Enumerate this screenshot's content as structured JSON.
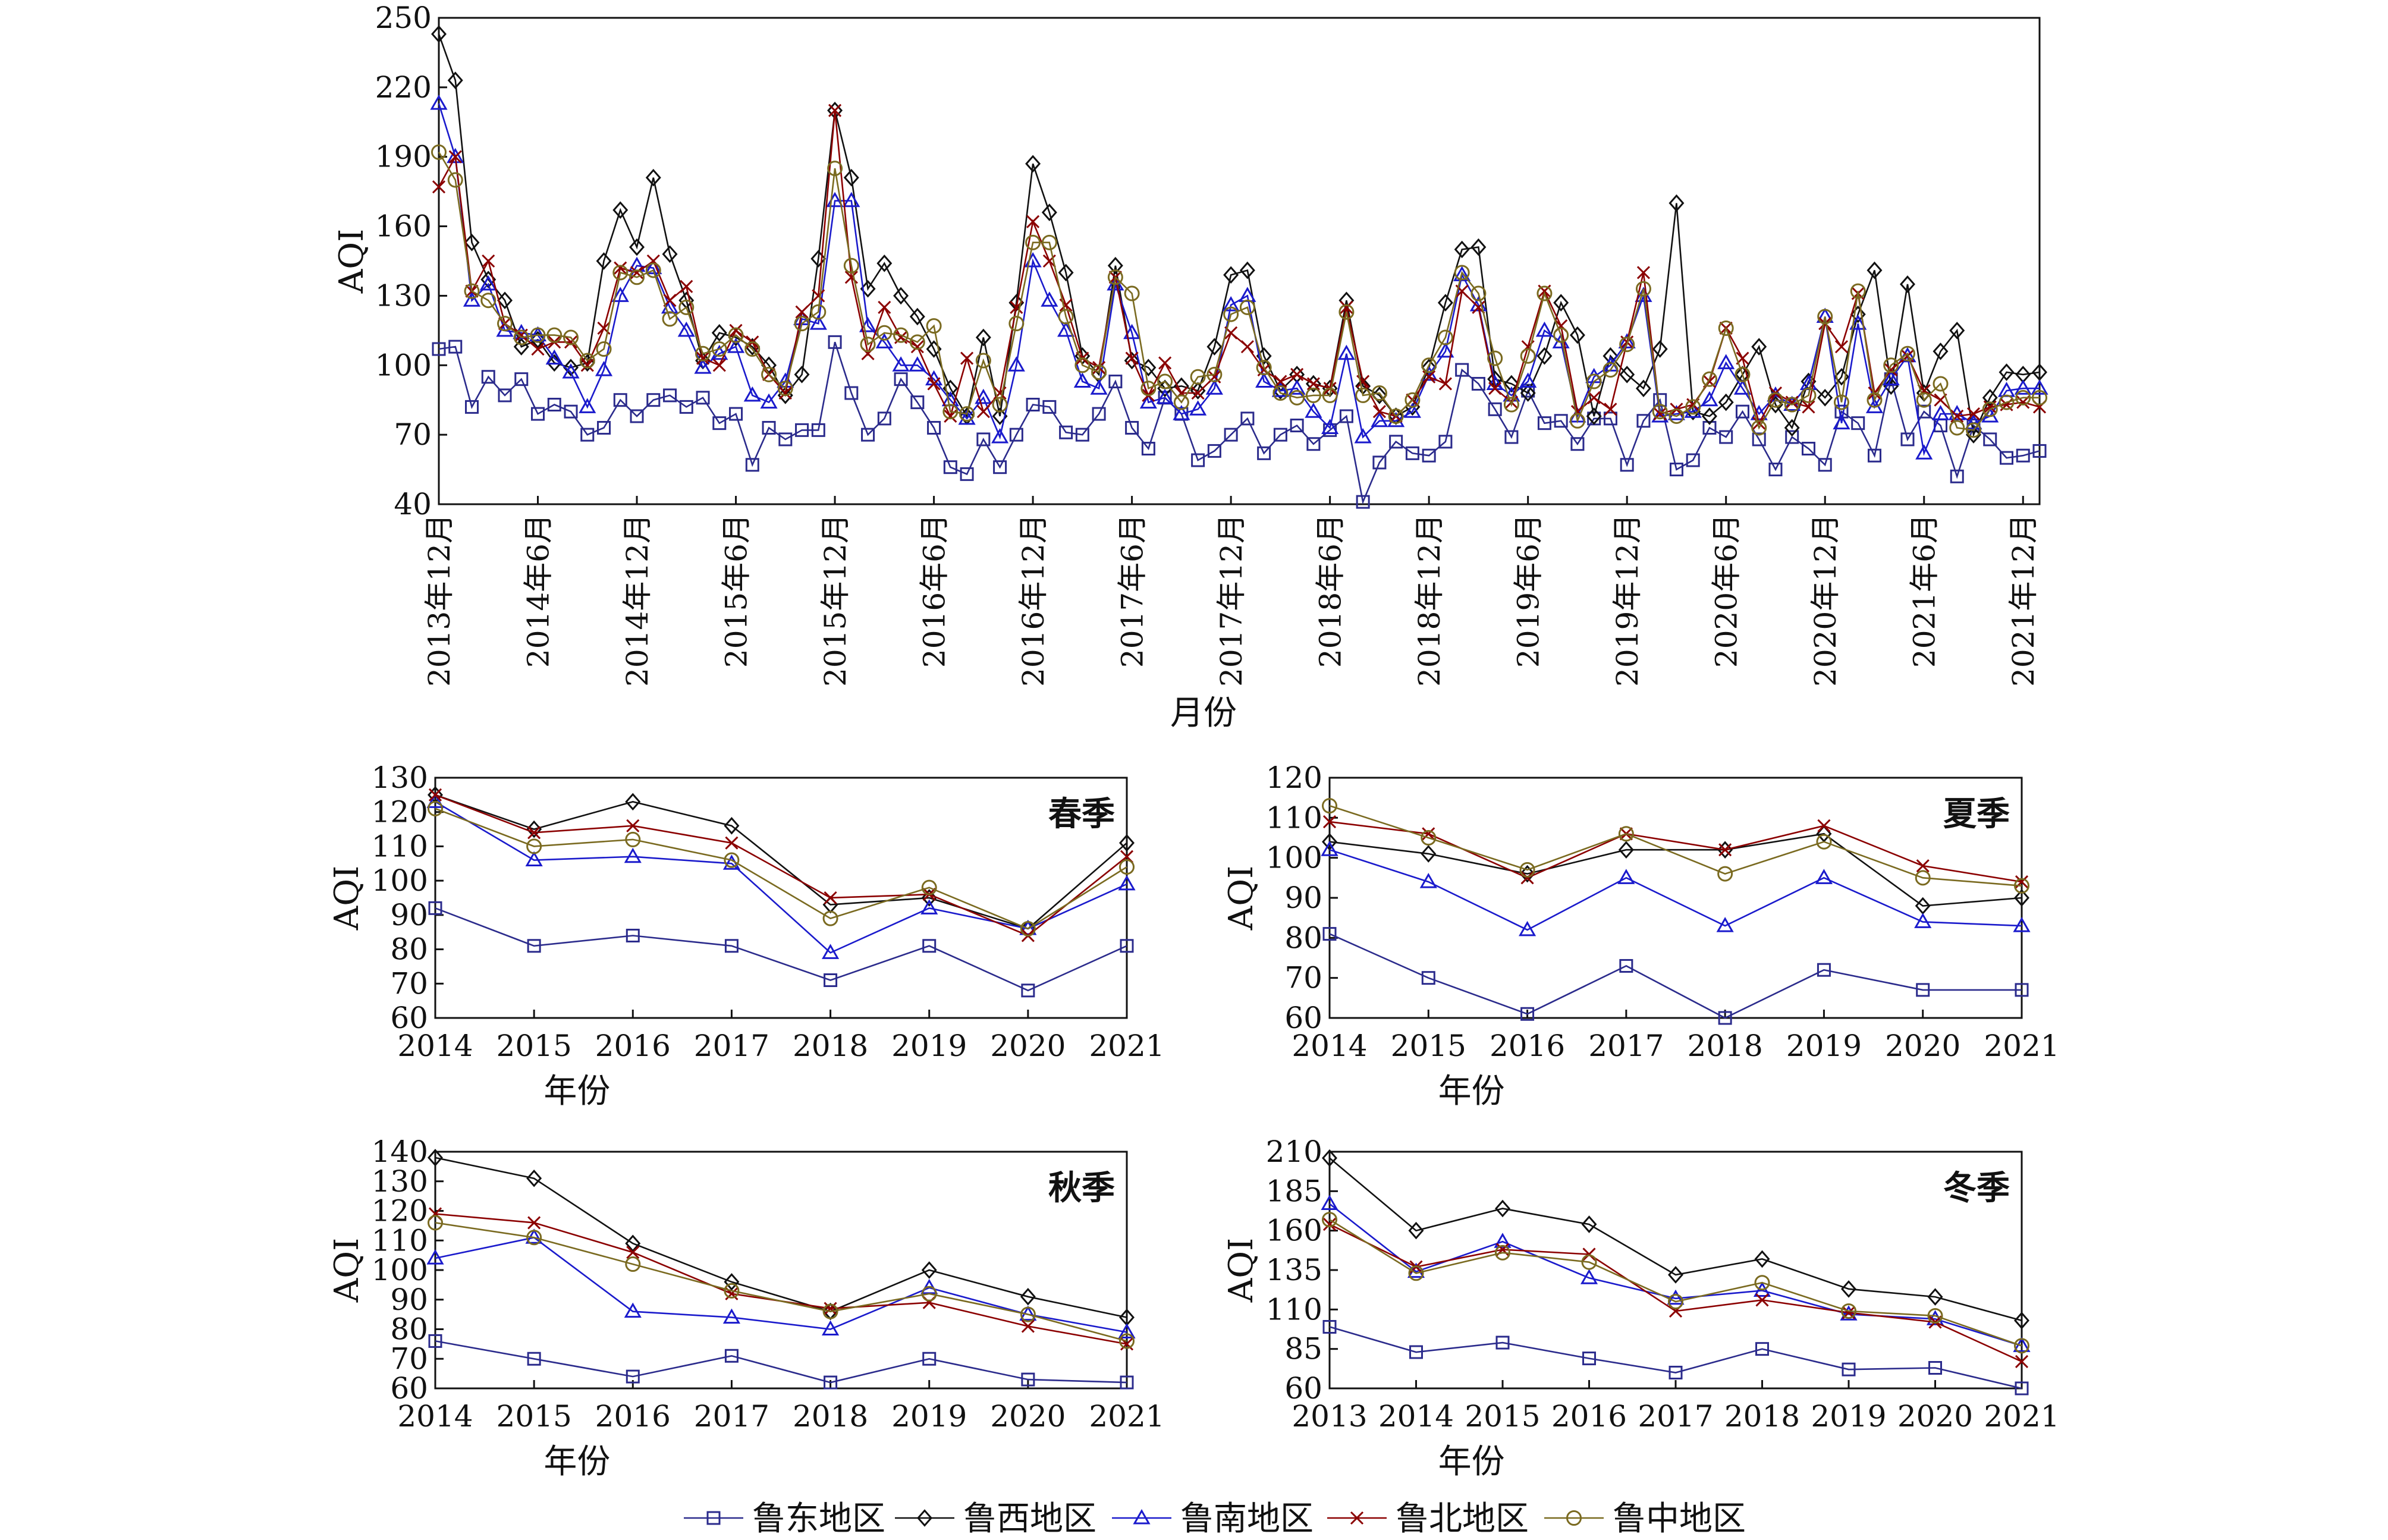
{
  "colors": {
    "east": "#2b2b8c",
    "west": "#111111",
    "south": "#1a1acc",
    "north": "#8b0000",
    "central": "#7a6a20"
  },
  "legend": [
    {
      "key": "east",
      "label": "鲁东地区",
      "marker": "square"
    },
    {
      "key": "west",
      "label": "鲁西地区",
      "marker": "diamond"
    },
    {
      "key": "south",
      "label": "鲁南地区",
      "marker": "triangle"
    },
    {
      "key": "north",
      "label": "鲁北地区",
      "marker": "cross"
    },
    {
      "key": "central",
      "label": "鲁中地区",
      "marker": "circle"
    }
  ],
  "chart_data": [
    {
      "id": "monthly",
      "type": "line",
      "ylabel": "AQI",
      "xlabel": "月份",
      "ylim": [
        40,
        250
      ],
      "yticks": [
        40,
        70,
        100,
        130,
        160,
        190,
        220,
        250
      ],
      "x_start": "2013年12月",
      "x_end": "2021年12月",
      "xticks": [
        "2013年12月",
        "2014年6月",
        "2014年12月",
        "2015年6月",
        "2015年12月",
        "2016年6月",
        "2016年12月",
        "2017年6月",
        "2017年12月",
        "2018年6月",
        "2018年12月",
        "2019年6月",
        "2019年12月",
        "2020年6月",
        "2020年12月",
        "2021年6月",
        "2021年12月"
      ],
      "series": [
        {
          "key": "east",
          "values": [
            107,
            108,
            82,
            95,
            87,
            94,
            79,
            83,
            80,
            70,
            73,
            85,
            78,
            85,
            87,
            82,
            86,
            75,
            79,
            57,
            73,
            68,
            72,
            72,
            110,
            88,
            70,
            77,
            94,
            84,
            73,
            56,
            53,
            68,
            56,
            70,
            83,
            82,
            71,
            70,
            79,
            93,
            73,
            64,
            86,
            79,
            59,
            63,
            70,
            77,
            62,
            70,
            74,
            66,
            72,
            78,
            41,
            58,
            67,
            62,
            61,
            67,
            98,
            92,
            81,
            69,
            89,
            75,
            76,
            66,
            77,
            77,
            57,
            76,
            85,
            55,
            59,
            73,
            69,
            80,
            68,
            55,
            69,
            64,
            57,
            80,
            75,
            61,
            94,
            68,
            80,
            74,
            52,
            74,
            68,
            60,
            61,
            63
          ]
        },
        {
          "key": "west",
          "values": [
            243,
            223,
            153,
            137,
            128,
            108,
            111,
            101,
            99,
            101,
            145,
            167,
            151,
            181,
            148,
            128,
            102,
            114,
            112,
            108,
            100,
            87,
            96,
            146,
            210,
            181,
            133,
            144,
            130,
            121,
            107,
            90,
            78,
            112,
            78,
            127,
            187,
            166,
            140,
            104,
            96,
            143,
            102,
            99,
            90,
            91,
            89,
            108,
            139,
            141,
            104,
            89,
            96,
            92,
            90,
            128,
            91,
            87,
            78,
            82,
            99,
            127,
            150,
            151,
            94,
            92,
            88,
            104,
            127,
            113,
            78,
            104,
            96,
            90,
            107,
            170,
            80,
            78,
            84,
            96,
            108,
            83,
            73,
            93,
            86,
            95,
            122,
            141,
            91,
            135,
            88,
            106,
            115,
            70,
            86,
            97,
            96,
            97
          ]
        },
        {
          "key": "south",
          "values": [
            213,
            190,
            128,
            135,
            115,
            114,
            113,
            103,
            97,
            82,
            98,
            130,
            143,
            142,
            125,
            115,
            99,
            105,
            108,
            87,
            84,
            93,
            120,
            118,
            171,
            171,
            117,
            110,
            100,
            100,
            94,
            85,
            77,
            86,
            69,
            100,
            145,
            128,
            115,
            93,
            90,
            135,
            114,
            84,
            86,
            79,
            81,
            90,
            126,
            130,
            93,
            89,
            90,
            80,
            73,
            105,
            69,
            76,
            76,
            80,
            96,
            106,
            139,
            126,
            92,
            87,
            93,
            115,
            110,
            78,
            95,
            100,
            110,
            130,
            78,
            79,
            80,
            85,
            101,
            90,
            79,
            87,
            83,
            92,
            121,
            75,
            118,
            82,
            94,
            104,
            62,
            79,
            79,
            75,
            78,
            89,
            90,
            90
          ]
        },
        {
          "key": "north",
          "values": [
            177,
            190,
            132,
            145,
            118,
            113,
            107,
            110,
            110,
            100,
            116,
            142,
            140,
            145,
            128,
            134,
            103,
            100,
            115,
            110,
            96,
            88,
            123,
            130,
            210,
            138,
            105,
            125,
            112,
            108,
            92,
            78,
            103,
            80,
            88,
            125,
            162,
            145,
            126,
            103,
            99,
            138,
            103,
            87,
            101,
            88,
            88,
            95,
            114,
            108,
            98,
            93,
            96,
            92,
            90,
            125,
            93,
            80,
            78,
            85,
            95,
            92,
            132,
            125,
            90,
            84,
            108,
            132,
            117,
            80,
            86,
            81,
            110,
            140,
            79,
            81,
            83,
            93,
            116,
            103,
            75,
            88,
            84,
            82,
            118,
            108,
            131,
            88,
            98,
            104,
            89,
            85,
            78,
            79,
            82,
            83,
            84,
            82
          ]
        },
        {
          "key": "central",
          "values": [
            192,
            180,
            132,
            128,
            118,
            112,
            113,
            113,
            112,
            102,
            107,
            140,
            138,
            141,
            120,
            125,
            105,
            107,
            113,
            107,
            96,
            90,
            118,
            123,
            185,
            143,
            109,
            114,
            113,
            110,
            117,
            80,
            79,
            102,
            83,
            118,
            153,
            153,
            121,
            100,
            97,
            138,
            131,
            90,
            93,
            84,
            95,
            96,
            122,
            125,
            99,
            88,
            86,
            87,
            87,
            123,
            87,
            88,
            78,
            85,
            100,
            112,
            140,
            131,
            103,
            83,
            104,
            131,
            113,
            76,
            93,
            98,
            109,
            133,
            80,
            78,
            82,
            94,
            116,
            96,
            73,
            85,
            83,
            87,
            121,
            84,
            132,
            85,
            100,
            105,
            85,
            92,
            73,
            72,
            81,
            84,
            86,
            86
          ]
        }
      ]
    },
    {
      "id": "spring",
      "type": "line",
      "title": "春季",
      "ylabel": "AQI",
      "xlabel": "年份",
      "ylim": [
        60,
        130
      ],
      "yticks": [
        60,
        70,
        80,
        90,
        100,
        110,
        120,
        130
      ],
      "categories": [
        "2014",
        "2015",
        "2016",
        "2017",
        "2018",
        "2019",
        "2020",
        "2021"
      ],
      "series": [
        {
          "key": "east",
          "values": [
            92,
            81,
            84,
            81,
            71,
            81,
            68,
            81
          ]
        },
        {
          "key": "west",
          "values": [
            125,
            115,
            123,
            116,
            93,
            95,
            86,
            111
          ]
        },
        {
          "key": "south",
          "values": [
            123,
            106,
            107,
            105,
            79,
            92,
            86,
            99
          ]
        },
        {
          "key": "north",
          "values": [
            125,
            114,
            116,
            111,
            95,
            96,
            84,
            107
          ]
        },
        {
          "key": "central",
          "values": [
            121,
            110,
            112,
            106,
            89,
            98,
            86,
            104
          ]
        }
      ]
    },
    {
      "id": "summer",
      "type": "line",
      "title": "夏季",
      "ylabel": "AQI",
      "xlabel": "年份",
      "ylim": [
        60,
        120
      ],
      "yticks": [
        60,
        70,
        80,
        90,
        100,
        110,
        120
      ],
      "categories": [
        "2014",
        "2015",
        "2016",
        "2017",
        "2018",
        "2019",
        "2020",
        "2021"
      ],
      "series": [
        {
          "key": "east",
          "values": [
            81,
            70,
            61,
            73,
            60,
            72,
            67,
            67
          ]
        },
        {
          "key": "west",
          "values": [
            104,
            101,
            96,
            102,
            102,
            106,
            88,
            90
          ]
        },
        {
          "key": "south",
          "values": [
            102,
            94,
            82,
            95,
            83,
            95,
            84,
            83
          ]
        },
        {
          "key": "north",
          "values": [
            109,
            106,
            95,
            106,
            102,
            108,
            98,
            94
          ]
        },
        {
          "key": "central",
          "values": [
            113,
            105,
            97,
            106,
            96,
            104,
            95,
            93
          ]
        }
      ]
    },
    {
      "id": "autumn",
      "type": "line",
      "title": "秋季",
      "ylabel": "AQI",
      "xlabel": "年份",
      "ylim": [
        60,
        140
      ],
      "yticks": [
        60,
        70,
        80,
        90,
        100,
        110,
        120,
        130,
        140
      ],
      "categories": [
        "2014",
        "2015",
        "2016",
        "2017",
        "2018",
        "2019",
        "2020",
        "2021"
      ],
      "series": [
        {
          "key": "east",
          "values": [
            76,
            70,
            64,
            71,
            62,
            70,
            63,
            62
          ]
        },
        {
          "key": "west",
          "values": [
            138,
            131,
            109,
            96,
            86,
            100,
            91,
            84
          ]
        },
        {
          "key": "south",
          "values": [
            104,
            111,
            86,
            84,
            80,
            94,
            85,
            79
          ]
        },
        {
          "key": "north",
          "values": [
            119,
            116,
            106,
            92,
            87,
            89,
            81,
            75
          ]
        },
        {
          "key": "central",
          "values": [
            116,
            111,
            102,
            93,
            86,
            92,
            85,
            76
          ]
        }
      ]
    },
    {
      "id": "winter",
      "type": "line",
      "title": "冬季",
      "ylabel": "AQI",
      "xlabel": "年份",
      "ylim": [
        60,
        210
      ],
      "yticks": [
        60,
        85,
        110,
        135,
        160,
        185,
        210
      ],
      "categories": [
        "2013",
        "2014",
        "2015",
        "2016",
        "2017",
        "2018",
        "2019",
        "2020",
        "2021"
      ],
      "series": [
        {
          "key": "east",
          "values": [
            99,
            83,
            89,
            79,
            70,
            85,
            72,
            73,
            60
          ]
        },
        {
          "key": "west",
          "values": [
            206,
            160,
            174,
            164,
            132,
            142,
            123,
            118,
            103
          ]
        },
        {
          "key": "south",
          "values": [
            177,
            134,
            153,
            130,
            117,
            122,
            107,
            104,
            87
          ]
        },
        {
          "key": "north",
          "values": [
            164,
            137,
            148,
            145,
            109,
            116,
            108,
            102,
            77
          ]
        },
        {
          "key": "central",
          "values": [
            167,
            133,
            146,
            140,
            115,
            127,
            109,
            106,
            87
          ]
        }
      ]
    }
  ]
}
